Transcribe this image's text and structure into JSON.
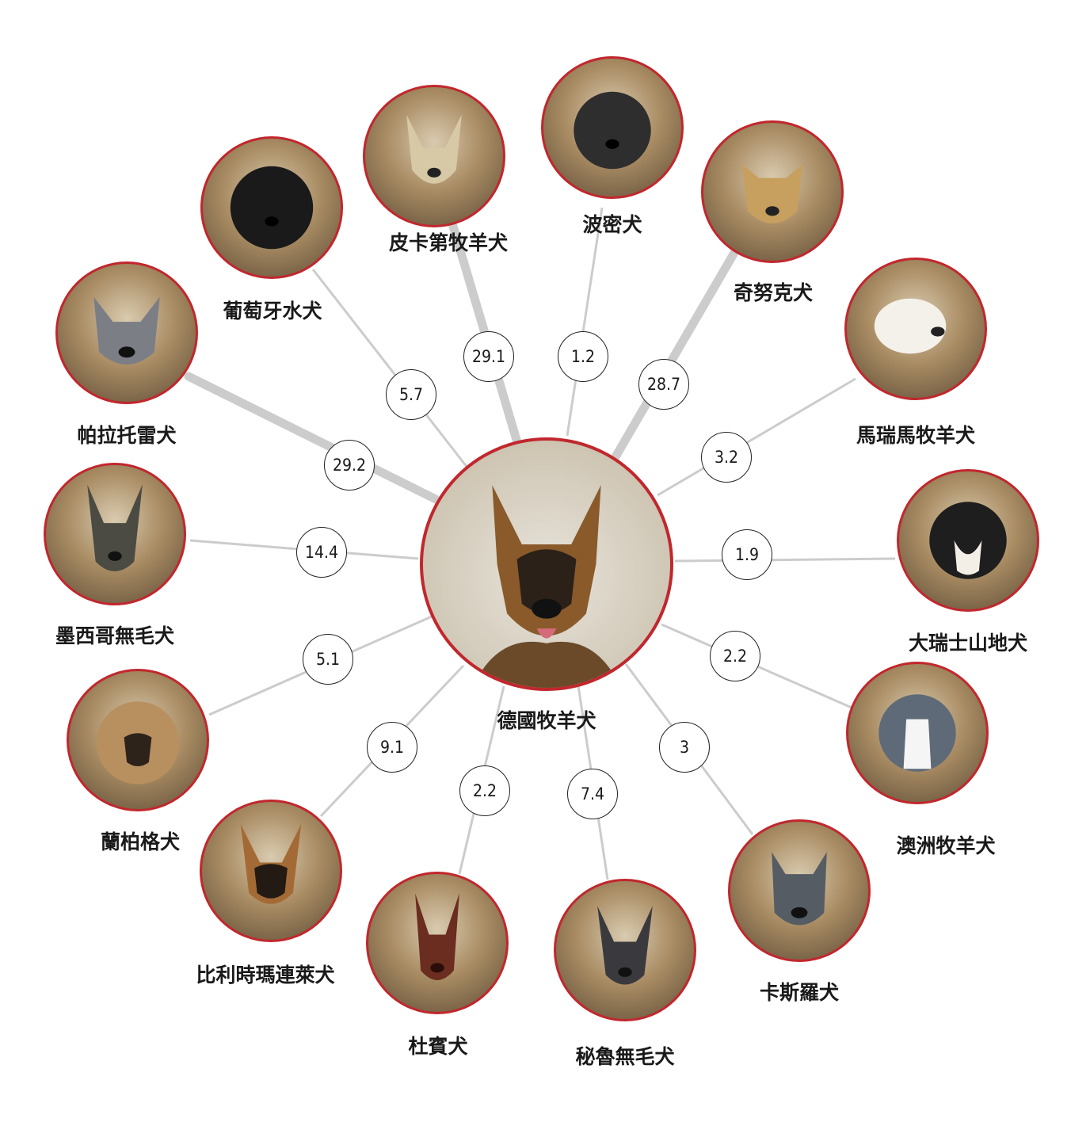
{
  "center": {
    "name": "德國牧羊犬"
  },
  "breeds": [
    {
      "name": "皮卡第牧羊犬",
      "value": "29.1"
    },
    {
      "name": "波密犬",
      "value": "1.2"
    },
    {
      "name": "奇努克犬",
      "value": "28.7"
    },
    {
      "name": "馬瑞馬牧羊犬",
      "value": "3.2"
    },
    {
      "name": "大瑞士山地犬",
      "value": "1.9"
    },
    {
      "name": "澳洲牧羊犬",
      "value": "2.2"
    },
    {
      "name": "卡斯羅犬",
      "value": "3"
    },
    {
      "name": "秘魯無毛犬",
      "value": "7.4"
    },
    {
      "name": "杜賓犬",
      "value": "2.2"
    },
    {
      "name": "比利時瑪連萊犬",
      "value": "9.1"
    },
    {
      "name": "蘭柏格犬",
      "value": "5.1"
    },
    {
      "name": "墨西哥無毛犬",
      "value": "14.4"
    },
    {
      "name": "帕拉托雷犬",
      "value": "29.2"
    },
    {
      "name": "葡萄牙水犬",
      "value": "5.7"
    }
  ],
  "colors": {
    "ring": "#c1272d",
    "link": "#cccccc"
  }
}
